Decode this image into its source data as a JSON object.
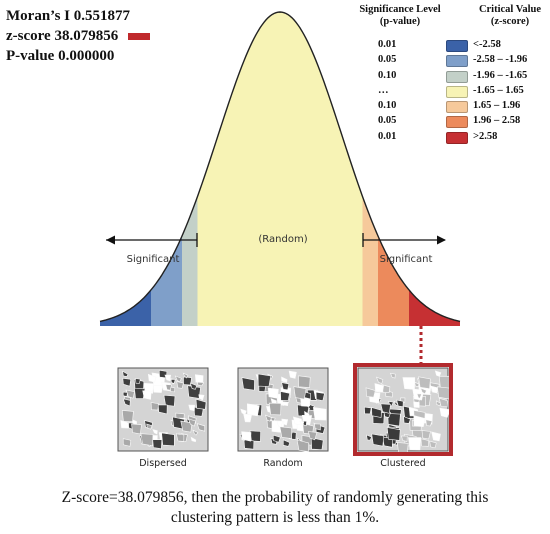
{
  "stats": {
    "morans_i": "Moran’s I 0.551877",
    "z_score": "z-score 38.079856",
    "p_value": "P-value 0.000000",
    "zscore_marker_color": "#c0292c"
  },
  "legend": {
    "significance_header": "Significance Level",
    "significance_sub": "(p-value)",
    "critical_header": "Critical Value",
    "critical_sub": "(z-score)",
    "rows": [
      {
        "p": "0.01",
        "z": "<-2.58",
        "color": "#3b62a8"
      },
      {
        "p": "0.05",
        "z": "-2.58 – -1.96",
        "color": "#7f9fc9"
      },
      {
        "p": "0.10",
        "z": "-1.96 – -1.65",
        "color": "#c3d0c8"
      },
      {
        "p": "…",
        "z": "-1.65 – 1.65",
        "color": "#f7f3b5"
      },
      {
        "p": "0.10",
        "z": "1.65 – 1.96",
        "color": "#f6c99b"
      },
      {
        "p": "0.05",
        "z": "1.96 – 2.58",
        "color": "#ec8a5c"
      },
      {
        "p": "0.01",
        "z": ">2.58",
        "color": "#c63033"
      }
    ]
  },
  "diagram": {
    "random_label": "(Random)",
    "left_label": "Significant",
    "right_label": "Significant",
    "maps": [
      {
        "label": "Dispersed"
      },
      {
        "label": "Random"
      },
      {
        "label": "Clustered"
      }
    ],
    "highlight_color": "#b22a2e"
  },
  "caption": {
    "line1": "Z-score=38.079856, then the probability of randomly generating this",
    "line2": "clustering pattern is less than 1%."
  }
}
